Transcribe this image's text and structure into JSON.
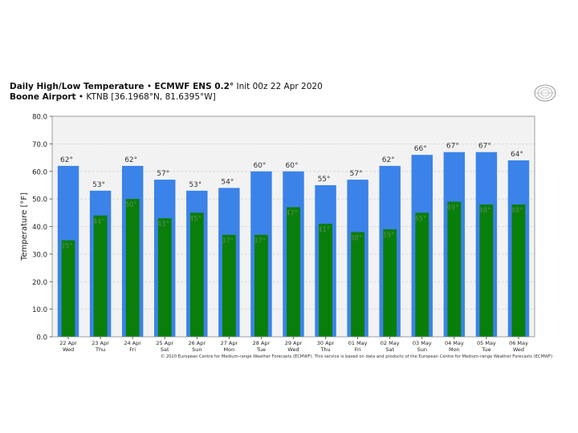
{
  "header": {
    "title_bold": "Daily High/Low Temperature",
    "title_model": "ECMWF ENS 0.2°",
    "title_init": "Init 00z 22 Apr 2020",
    "subtitle_bold": "Boone Airport",
    "subtitle_loc": "KTNB [36.1968°N, 81.6395°W]",
    "separator": "•"
  },
  "copyright": "© 2020 European Centre for Medium-range Weather Forecasts (ECMWF). This service is based on data and products of the European Centre for Medium-range Weather Forecasts (ECMWF)",
  "colors": {
    "high": "#3b83e8",
    "low": "#0a7e0a",
    "plot_bg": "#f2f2f2",
    "grid": "#d2d2d2",
    "high_label": "#333333",
    "low_label": "#5a8a5a"
  },
  "chart_data": {
    "type": "bar",
    "ylabel": "Temperature [°F]",
    "ylim": [
      0,
      80
    ],
    "yticks": [
      0,
      10,
      20,
      30,
      40,
      50,
      60,
      70,
      80
    ],
    "ytick_labels": [
      "0.0",
      "10.0",
      "20.0",
      "30.0",
      "40.0",
      "50.0",
      "60.0",
      "70.0",
      "80.0"
    ],
    "grid": true,
    "categories": [
      [
        "22 Apr",
        "Wed"
      ],
      [
        "23 Apr",
        "Thu"
      ],
      [
        "24 Apr",
        "Fri"
      ],
      [
        "25 Apr",
        "Sat"
      ],
      [
        "26 Apr",
        "Sun"
      ],
      [
        "27 Apr",
        "Mon"
      ],
      [
        "28 Apr",
        "Tue"
      ],
      [
        "29 Apr",
        "Wed"
      ],
      [
        "30 Apr",
        "Thu"
      ],
      [
        "01 May",
        "Fri"
      ],
      [
        "02 May",
        "Sat"
      ],
      [
        "03 May",
        "Sun"
      ],
      [
        "04 May",
        "Mon"
      ],
      [
        "05 May",
        "Tue"
      ],
      [
        "06 May",
        "Wed"
      ]
    ],
    "series": [
      {
        "key": "high",
        "values": [
          62,
          53,
          62,
          57,
          53,
          54,
          60,
          60,
          55,
          57,
          62,
          66,
          67,
          67,
          64
        ]
      },
      {
        "key": "low",
        "values": [
          35,
          44,
          50,
          43,
          45,
          37,
          37,
          47,
          41,
          38,
          39,
          45,
          49,
          48,
          48
        ]
      }
    ],
    "label_suffix": "°"
  }
}
